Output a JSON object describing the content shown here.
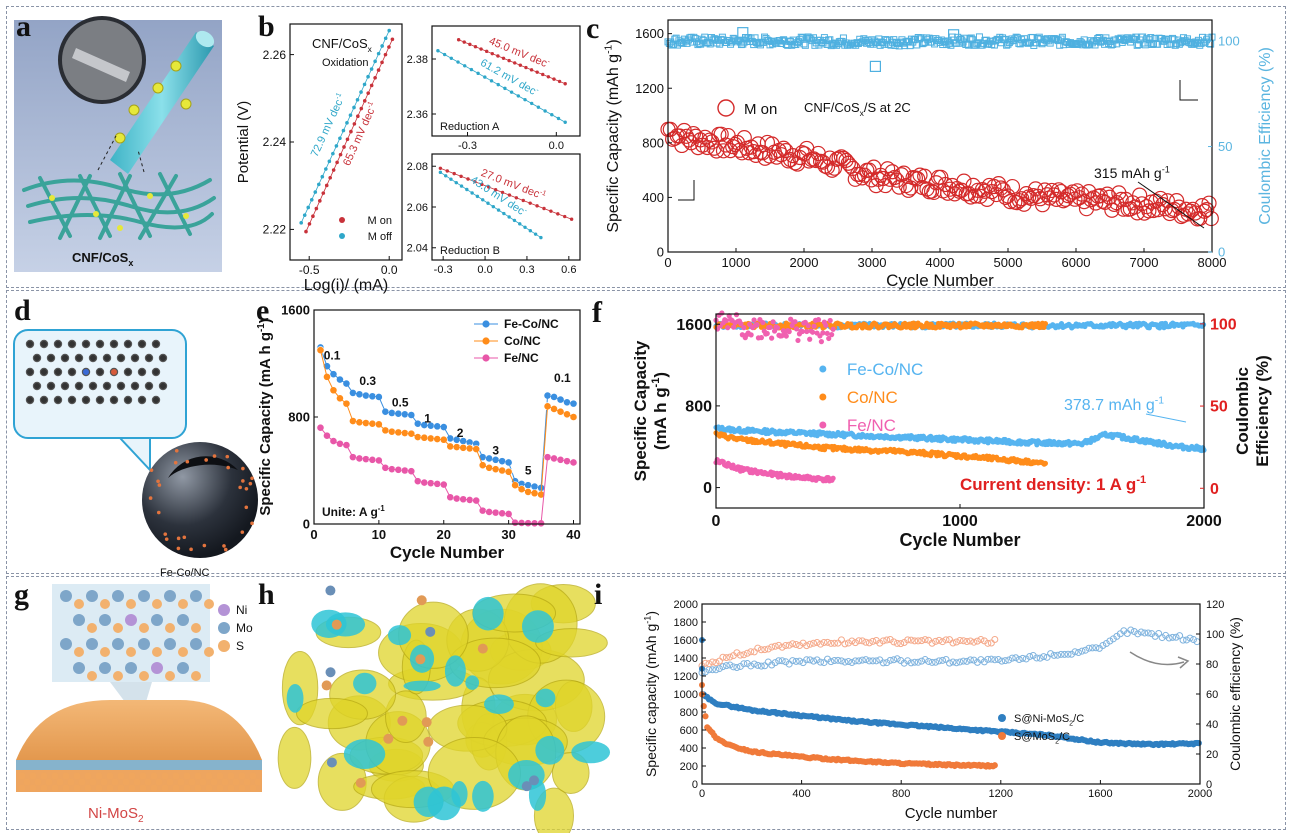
{
  "panels": {
    "a": {
      "label": "a",
      "caption": "CNF/CoS",
      "caption_sub": "x"
    },
    "b": {
      "label": "b"
    },
    "c": {
      "label": "c"
    },
    "d": {
      "label": "d",
      "caption": "Fe-Co/NC"
    },
    "e": {
      "label": "e"
    },
    "f": {
      "label": "f"
    },
    "g": {
      "label": "g",
      "caption": "Ni-MoS",
      "caption_sub": "2",
      "legend": [
        {
          "name": "Ni",
          "color": "#b493d6"
        },
        {
          "name": "Mo",
          "color": "#7ea6c9"
        },
        {
          "name": "S",
          "color": "#f2b16e"
        }
      ]
    },
    "h": {
      "label": "h"
    },
    "i": {
      "label": "i"
    }
  },
  "chart_data": [
    {
      "id": "b_main",
      "type": "line",
      "title": "CNF/CoS",
      "title_sub": "x",
      "subtitle": "Oxidation",
      "xlabel": "Log(i)/ (mA)",
      "ylabel": "Potential (V)",
      "xlim": [
        -0.62,
        0.08
      ],
      "ylim": [
        2.213,
        2.267
      ],
      "xticks": [
        -0.5,
        0.0
      ],
      "xtick_labels": [
        "-0.5",
        "0.0"
      ],
      "yticks": [
        2.22,
        2.24,
        2.26
      ],
      "ytick_labels": [
        "2.22",
        "2.24",
        "2.26"
      ],
      "series": [
        {
          "name": "M on",
          "color": "#c8323a",
          "x": [
            -0.52,
            0.02
          ],
          "y": [
            2.2195,
            2.2635
          ],
          "annotation": "65.3 mV dec",
          "annotation_sup": "-1"
        },
        {
          "name": "M off",
          "color": "#2fa7c9",
          "x": [
            -0.55,
            0.0
          ],
          "y": [
            2.2215,
            2.2655
          ],
          "annotation": "72.9 mV dec",
          "annotation_sup": "-1"
        }
      ]
    },
    {
      "id": "b_redA",
      "type": "line",
      "subtitle": "Reduction A",
      "xlim": [
        -0.42,
        0.08
      ],
      "ylim": [
        2.352,
        2.392
      ],
      "xticks": [
        -0.3,
        0.0
      ],
      "xtick_labels": [
        "-0.3",
        "0.0"
      ],
      "yticks": [
        2.36,
        2.38
      ],
      "ytick_labels": [
        "2.36",
        "2.38"
      ],
      "series": [
        {
          "name": "M on",
          "color": "#c8323a",
          "x": [
            -0.33,
            0.03
          ],
          "y": [
            2.387,
            2.371
          ],
          "annotation": "45.0 mV dec",
          "annotation_sup": "-"
        },
        {
          "name": "M off",
          "color": "#2fa7c9",
          "x": [
            -0.4,
            0.03
          ],
          "y": [
            2.383,
            2.357
          ],
          "annotation": "61.2 mV dec",
          "annotation_sup": "-"
        }
      ]
    },
    {
      "id": "b_redB",
      "type": "line",
      "subtitle": "Reduction B",
      "xlim": [
        -0.38,
        0.68
      ],
      "ylim": [
        2.034,
        2.086
      ],
      "xticks": [
        -0.3,
        0.0,
        0.3,
        0.6
      ],
      "xtick_labels": [
        "-0.3",
        "0.0",
        "0.3",
        "0.6"
      ],
      "yticks": [
        2.04,
        2.06,
        2.08
      ],
      "ytick_labels": [
        "2.04",
        "2.06",
        "2.08"
      ],
      "series": [
        {
          "name": "M on",
          "color": "#c8323a",
          "x": [
            -0.32,
            0.62
          ],
          "y": [
            2.079,
            2.054
          ],
          "annotation": "27.0 mV dec",
          "annotation_sup": "-1"
        },
        {
          "name": "M off",
          "color": "#2fa7c9",
          "x": [
            -0.32,
            0.4
          ],
          "y": [
            2.077,
            2.045
          ],
          "annotation": "43.0 mV dec",
          "annotation_sup": "-"
        }
      ]
    },
    {
      "id": "c",
      "type": "scatter",
      "xlabel": "Cycle Number",
      "ylabel": "Specific Capacity (mAh g",
      "ylabel_sup": "-1",
      "ylabel_end": ")",
      "y2label": "Coulombic Efficiency (%)",
      "xlim": [
        0,
        8000
      ],
      "ylim": [
        0,
        1700
      ],
      "y2lim": [
        0,
        110
      ],
      "xticks": [
        0,
        1000,
        2000,
        3000,
        4000,
        5000,
        6000,
        7000,
        8000
      ],
      "yticks": [
        0,
        400,
        800,
        1200,
        1600
      ],
      "y2ticks": [
        0,
        50,
        100
      ],
      "legend": "M on",
      "legend_chem": "CNF/CoS",
      "legend_sub": "x",
      "legend_end": "/S   at 2C",
      "annotation": "315 mAh g",
      "annotation_sup": "-1",
      "series": [
        {
          "name": "capacity",
          "color": "#d42a2a",
          "x": [
            0,
            200,
            500,
            1000,
            1500,
            2000,
            2500,
            3000,
            3500,
            4000,
            4500,
            5000,
            5500,
            6000,
            6500,
            7000,
            7500,
            8000
          ],
          "y": [
            900,
            840,
            820,
            780,
            740,
            700,
            640,
            560,
            520,
            500,
            470,
            430,
            400,
            380,
            370,
            350,
            320,
            300
          ]
        },
        {
          "name": "coulombic efficiency",
          "color": "#4fb0e0",
          "axis": "right",
          "x": [
            0,
            1000,
            2000,
            3000,
            4000,
            5000,
            6000,
            7000,
            8000
          ],
          "y": [
            100,
            100,
            100,
            99.5,
            100,
            100,
            99.8,
            100,
            100
          ]
        }
      ]
    },
    {
      "id": "e",
      "type": "scatter",
      "xlabel": "Cycle Number",
      "ylabel": "Specific Capacity (mA h g",
      "ylabel_sup": "-1",
      "ylabel_end": ")",
      "xlim": [
        0,
        41
      ],
      "ylim": [
        0,
        1600
      ],
      "xticks": [
        0,
        10,
        20,
        30,
        40
      ],
      "yticks": [
        0,
        800,
        1600
      ],
      "annotation": "Unite: A g",
      "annotation_sup": "-1",
      "rate_labels": [
        {
          "text": "0.1",
          "x": 1.5,
          "y": 1230
        },
        {
          "text": "0.3",
          "x": 7,
          "y": 1040
        },
        {
          "text": "0.5",
          "x": 12,
          "y": 880
        },
        {
          "text": "1",
          "x": 17,
          "y": 760
        },
        {
          "text": "2",
          "x": 22,
          "y": 650
        },
        {
          "text": "3",
          "x": 27.5,
          "y": 520
        },
        {
          "text": "5",
          "x": 32.5,
          "y": 370
        },
        {
          "text": "0.1",
          "x": 37,
          "y": 1060
        }
      ],
      "series": [
        {
          "name": "Fe-Co/NC",
          "color": "#3a8fe0",
          "x": [
            1,
            2,
            3,
            4,
            5,
            6,
            7,
            8,
            9,
            10,
            11,
            12,
            13,
            14,
            15,
            16,
            17,
            18,
            19,
            20,
            21,
            22,
            23,
            24,
            25,
            26,
            27,
            28,
            29,
            30,
            31,
            32,
            33,
            34,
            35,
            36,
            37,
            38,
            39,
            40
          ],
          "y": [
            1320,
            1180,
            1120,
            1080,
            1050,
            980,
            970,
            960,
            955,
            950,
            840,
            830,
            825,
            820,
            815,
            750,
            740,
            735,
            730,
            725,
            640,
            630,
            620,
            610,
            600,
            500,
            490,
            480,
            470,
            460,
            320,
            300,
            290,
            280,
            270,
            960,
            950,
            930,
            910,
            900
          ]
        },
        {
          "name": "Co/NC",
          "color": "#ff8c1a",
          "x": [
            1,
            2,
            3,
            4,
            5,
            6,
            7,
            8,
            9,
            10,
            11,
            12,
            13,
            14,
            15,
            16,
            17,
            18,
            19,
            20,
            21,
            22,
            23,
            24,
            25,
            26,
            27,
            28,
            29,
            30,
            31,
            32,
            33,
            34,
            35,
            36,
            37,
            38,
            39,
            40
          ],
          "y": [
            1300,
            1100,
            1000,
            940,
            900,
            770,
            760,
            755,
            750,
            745,
            700,
            690,
            685,
            680,
            675,
            650,
            645,
            640,
            635,
            630,
            580,
            575,
            570,
            565,
            560,
            440,
            420,
            410,
            400,
            390,
            290,
            260,
            240,
            230,
            220,
            880,
            860,
            840,
            820,
            800
          ]
        },
        {
          "name": "Fe/NC",
          "color": "#e857a8",
          "x": [
            1,
            2,
            3,
            4,
            5,
            6,
            7,
            8,
            9,
            10,
            11,
            12,
            13,
            14,
            15,
            16,
            17,
            18,
            19,
            20,
            21,
            22,
            23,
            24,
            25,
            26,
            27,
            28,
            29,
            30,
            31,
            32,
            33,
            34,
            35,
            36,
            37,
            38,
            39,
            40
          ],
          "y": [
            720,
            660,
            620,
            600,
            590,
            500,
            490,
            485,
            480,
            475,
            420,
            410,
            405,
            400,
            395,
            320,
            310,
            305,
            300,
            295,
            200,
            190,
            185,
            180,
            175,
            100,
            90,
            85,
            80,
            75,
            10,
            8,
            6,
            5,
            5,
            500,
            490,
            480,
            470,
            460
          ]
        }
      ]
    },
    {
      "id": "f",
      "type": "scatter",
      "xlabel": "Cycle Number",
      "ylabel": "Specific Capacity",
      "ylabel2": "(mA h g",
      "ylabel2_sup": "-1",
      "ylabel2_end": ")",
      "y2label": "Coulombic",
      "y2label2": "Efficiency (%)",
      "xlim": [
        0,
        2000
      ],
      "ylim": [
        -200,
        1700
      ],
      "y2lim": [
        -12,
        106
      ],
      "xticks": [
        0,
        1000,
        2000
      ],
      "yticks": [
        0,
        800,
        1600
      ],
      "y2ticks": [
        0,
        50,
        100
      ],
      "annotation": "378.7 mAh g",
      "annotation_sup": "-1",
      "note": "Current density: 1 A g",
      "note_sup": "-1",
      "series": [
        {
          "name": "Fe-Co/NC",
          "color": "#56b4f0",
          "x": [
            0,
            100,
            300,
            500,
            700,
            900,
            1100,
            1300,
            1500,
            1600,
            1700,
            1800,
            1900,
            2000
          ],
          "y": [
            580,
            560,
            540,
            520,
            500,
            480,
            460,
            440,
            430,
            520,
            480,
            440,
            400,
            380
          ]
        },
        {
          "name": "Co/NC",
          "color": "#ff8c1a",
          "x": [
            0,
            100,
            300,
            500,
            700,
            900,
            1100,
            1300,
            1350
          ],
          "y": [
            520,
            470,
            420,
            380,
            360,
            330,
            290,
            250,
            230
          ]
        },
        {
          "name": "Fe/NC",
          "color": "#f060b0",
          "x": [
            0,
            100,
            200,
            300,
            400,
            480
          ],
          "y": [
            260,
            180,
            140,
            110,
            90,
            80
          ]
        },
        {
          "name": "Fe-Co/NC CE",
          "color": "#56b4f0",
          "axis": "right",
          "x": [
            0,
            500,
            1000,
            1500,
            2000
          ],
          "y": [
            99,
            99,
            99,
            99,
            99
          ]
        },
        {
          "name": "Co/NC CE",
          "color": "#ff8c1a",
          "axis": "right",
          "x": [
            0,
            500,
            1000,
            1350
          ],
          "y": [
            99,
            99,
            99,
            99
          ]
        },
        {
          "name": "Fe/NC CE",
          "color": "#f060b0",
          "axis": "right",
          "x": [
            0,
            150,
            300,
            480
          ],
          "y": [
            100,
            98,
            97,
            95
          ]
        }
      ]
    },
    {
      "id": "i",
      "type": "scatter",
      "xlabel": "Cycle number",
      "ylabel": "Specific capacity (mAh g",
      "ylabel_sup": "-1",
      "ylabel_end": ")",
      "y2label": "Coulombic efficiency (%)",
      "xlim": [
        0,
        2000
      ],
      "ylim": [
        0,
        2000
      ],
      "y2lim": [
        0,
        120
      ],
      "xticks": [
        0,
        400,
        800,
        1200,
        1600,
        2000
      ],
      "yticks": [
        0,
        200,
        400,
        600,
        800,
        1000,
        1200,
        1400,
        1600,
        1800,
        2000
      ],
      "y2ticks": [
        0,
        20,
        40,
        60,
        80,
        100,
        120
      ],
      "series": [
        {
          "name": "S@Ni-MoS",
          "name_sub": "2",
          "name_end": "/C",
          "color": "#2f7fc1",
          "x": [
            0,
            50,
            200,
            400,
            600,
            800,
            1000,
            1200,
            1400,
            1600,
            1800,
            2000
          ],
          "y": [
            1000,
            900,
            820,
            760,
            700,
            660,
            620,
            580,
            540,
            460,
            440,
            450
          ]
        },
        {
          "name": "S@MoS",
          "name_sub": "2",
          "name_end": "/C",
          "color": "#f07a3a",
          "x": [
            0,
            20,
            60,
            120,
            200,
            400,
            600,
            800,
            1000,
            1180
          ],
          "y": [
            1000,
            640,
            500,
            420,
            360,
            300,
            260,
            230,
            210,
            200
          ]
        },
        {
          "name": "S@Ni-MoS2/C CE",
          "color": "#7fb3de",
          "axis": "right",
          "x": [
            0,
            100,
            400,
            800,
            1200,
            1400,
            1600,
            1700,
            1800,
            2000
          ],
          "y": [
            75,
            78,
            82,
            82,
            82,
            86,
            90,
            102,
            100,
            96
          ]
        },
        {
          "name": "S@MoS2/C CE",
          "color": "#f5a98a",
          "axis": "right",
          "x": [
            0,
            100,
            300,
            600,
            900,
            1180
          ],
          "y": [
            78,
            85,
            92,
            95,
            95,
            95
          ]
        }
      ]
    }
  ]
}
